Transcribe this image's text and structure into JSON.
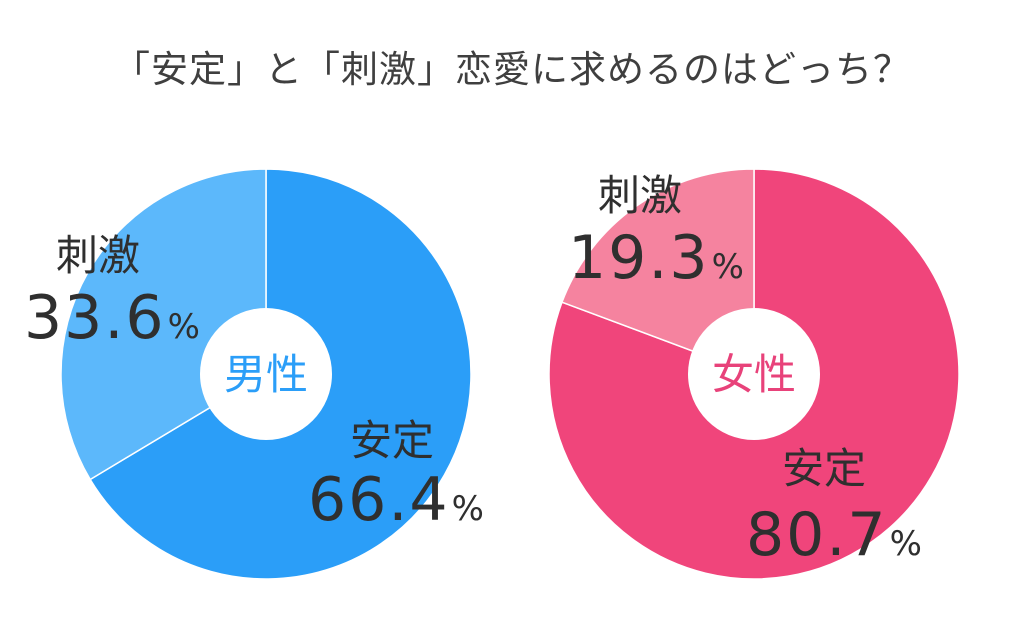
{
  "chart_data": {
    "title": "「安定」と「刺激」恋愛に求めるのはどっち？",
    "charts": [
      {
        "type": "pie",
        "group": "男性",
        "slices": [
          {
            "label": "安定",
            "value": 66.4,
            "display": "66.4",
            "color": "#2b9ef8"
          },
          {
            "label": "刺激",
            "value": 33.6,
            "display": "33.6",
            "color": "#5cb8fb"
          }
        ],
        "center_color": "#2b9ef8"
      },
      {
        "type": "pie",
        "group": "女性",
        "slices": [
          {
            "label": "安定",
            "value": 80.7,
            "display": "80.7",
            "color": "#f0457b"
          },
          {
            "label": "刺激",
            "value": 19.3,
            "display": "19.3",
            "color": "#f5839f"
          }
        ],
        "center_color": "#e8427a"
      }
    ],
    "percent_sign": "%"
  }
}
